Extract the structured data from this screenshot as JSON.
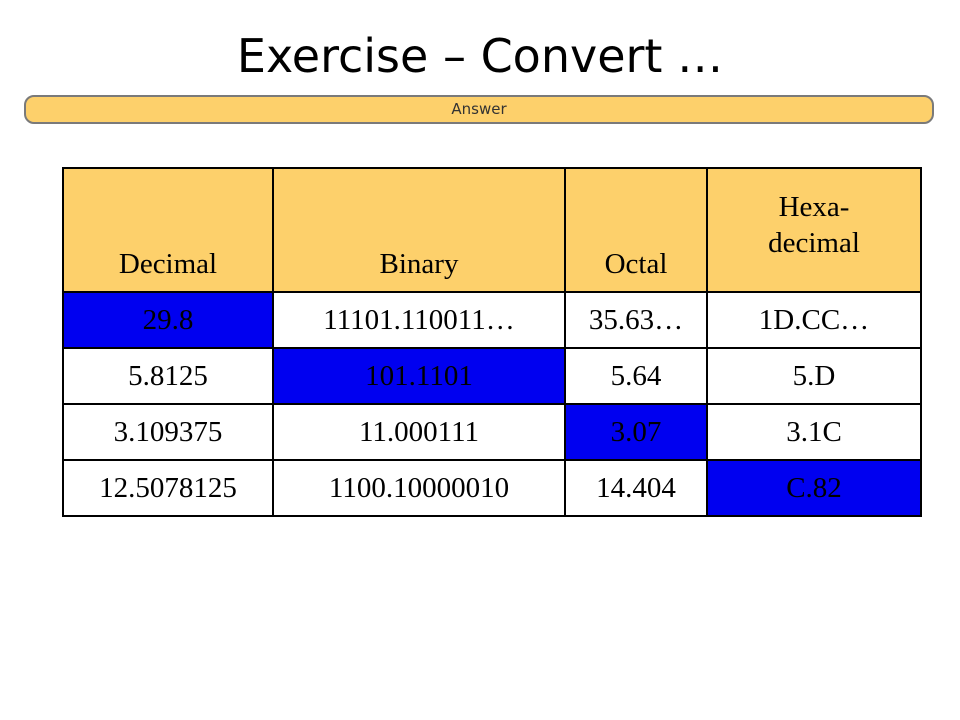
{
  "slide": {
    "title": "Exercise – Convert …",
    "answer_label": "Answer"
  },
  "table": {
    "headers": [
      "Decimal",
      "Binary",
      "Octal",
      "Hexa-\ndecimal"
    ],
    "rows": [
      [
        "29.8",
        "11101.110011…",
        "35.63…",
        "1D.CC…"
      ],
      [
        "5.8125",
        "101.1101",
        "5.64",
        "5.D"
      ],
      [
        "3.109375",
        "11.000111",
        "3.07",
        "3.1C"
      ],
      [
        "12.5078125",
        "1100.10000010",
        "14.404",
        "C.82"
      ]
    ],
    "given_column_per_row": [
      0,
      1,
      2,
      3
    ]
  },
  "colors": {
    "header_fill": "#fdd06b",
    "given_cell_fill": "#0000f0",
    "answer_bar_fill": "#fdd06b"
  }
}
